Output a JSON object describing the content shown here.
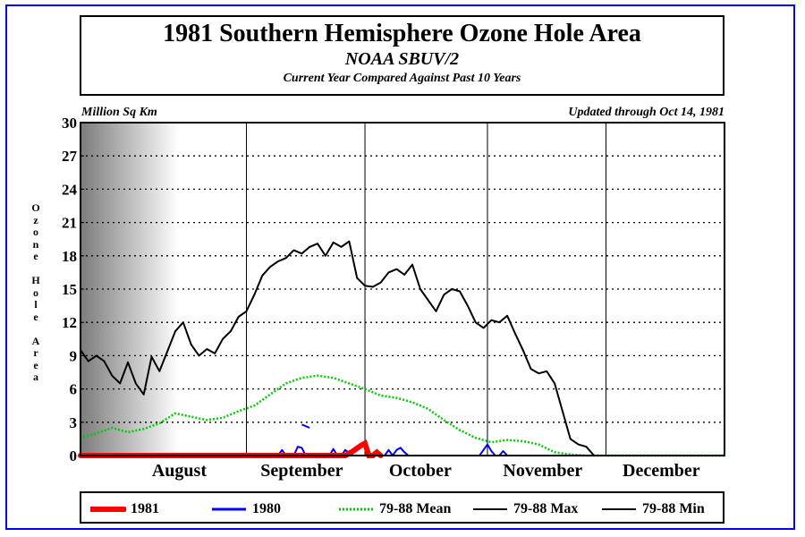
{
  "header": {
    "title": "1981 Southern Hemisphere Ozone Hole Area",
    "subtitle": "NOAA SBUV/2",
    "subtitle2": "Current Year Compared Against Past 10 Years",
    "units": "Million Sq Km",
    "updated": "Updated through Oct 14, 1981",
    "ylabel": "Ozone Hole Area"
  },
  "colors": {
    "frame": "#0000ff",
    "y1981": "#ff0000",
    "y1980": "#0000ff",
    "mean": "#00cc00",
    "max": "#000000",
    "min": "#000000"
  },
  "chart_data": {
    "type": "line",
    "title": "1981 Southern Hemisphere Ozone Hole Area",
    "ylabel": "Ozone Hole Area",
    "yunits": "Million Sq Km",
    "ylim": [
      0,
      30
    ],
    "yticks": [
      0,
      3,
      6,
      9,
      12,
      15,
      18,
      21,
      24,
      27,
      30
    ],
    "xlim": [
      "Jul 21",
      "Dec 31"
    ],
    "months": [
      {
        "name": "August",
        "start": "Aug 1",
        "label": "Aug 15"
      },
      {
        "name": "September",
        "start": "Sep 1",
        "label": "Sep 15"
      },
      {
        "name": "October",
        "start": "Oct 1",
        "label": "Oct 15"
      },
      {
        "name": "November",
        "start": "Nov 1",
        "label": "Nov 15"
      },
      {
        "name": "December",
        "start": "Dec 1",
        "label": "Dec 15"
      }
    ],
    "shading": {
      "from": "Jul 21",
      "to": "Aug 15",
      "note": "gray gradient"
    },
    "series": [
      {
        "name": "79-88 Max",
        "key": "max",
        "style": "solid",
        "x": [
          "Jul 21",
          "Jul 23",
          "Jul 25",
          "Jul 27",
          "Jul 29",
          "Jul 31",
          "Aug 2",
          "Aug 4",
          "Aug 6",
          "Aug 8",
          "Aug 10",
          "Aug 12",
          "Aug 14",
          "Aug 16",
          "Aug 18",
          "Aug 20",
          "Aug 22",
          "Aug 24",
          "Aug 26",
          "Aug 28",
          "Aug 30",
          "Sep 1",
          "Sep 3",
          "Sep 5",
          "Sep 7",
          "Sep 9",
          "Sep 11",
          "Sep 13",
          "Sep 15",
          "Sep 17",
          "Sep 19",
          "Sep 21",
          "Sep 23",
          "Sep 25",
          "Sep 27",
          "Sep 29",
          "Oct 1",
          "Oct 3",
          "Oct 5",
          "Oct 7",
          "Oct 9",
          "Oct 11",
          "Oct 13",
          "Oct 15",
          "Oct 17",
          "Oct 19",
          "Oct 21",
          "Oct 23",
          "Oct 25",
          "Oct 27",
          "Oct 29",
          "Oct 31",
          "Nov 2",
          "Nov 4",
          "Nov 6",
          "Nov 8",
          "Nov 10",
          "Nov 12",
          "Nov 14",
          "Nov 16",
          "Nov 18",
          "Nov 20",
          "Nov 22",
          "Nov 24",
          "Nov 26",
          "Nov 28",
          "Nov 30",
          "Dec 1",
          "Dec 2"
        ],
        "values": [
          9.5,
          8.5,
          9.0,
          8.5,
          7.2,
          6.5,
          8.4,
          6.5,
          5.5,
          8.9,
          7.6,
          9.4,
          11.2,
          12.0,
          10.0,
          9.0,
          9.6,
          9.2,
          10.5,
          11.2,
          12.5,
          13.0,
          14.5,
          16.2,
          17.0,
          17.5,
          17.8,
          18.5,
          18.2,
          18.8,
          19.1,
          18.0,
          19.2,
          18.8,
          19.3,
          16.0,
          15.3,
          15.2,
          15.6,
          16.5,
          16.8,
          16.3,
          17.2,
          15.0,
          14.0,
          13.0,
          14.5,
          15.0,
          14.8,
          13.5,
          12.0,
          11.5,
          12.2,
          12.0,
          12.6,
          11.0,
          9.5,
          7.8,
          7.4,
          7.6,
          6.5,
          4.0,
          1.5,
          1.0,
          0.8,
          0.0,
          0.0,
          0.0,
          0.0
        ]
      },
      {
        "name": "79-88 Mean",
        "key": "mean",
        "style": "dotted",
        "x": [
          "Jul 21",
          "Jul 25",
          "Jul 29",
          "Aug 2",
          "Aug 6",
          "Aug 10",
          "Aug 14",
          "Aug 18",
          "Aug 22",
          "Aug 26",
          "Aug 30",
          "Sep 3",
          "Sep 7",
          "Sep 11",
          "Sep 15",
          "Sep 19",
          "Sep 23",
          "Sep 27",
          "Oct 1",
          "Oct 5",
          "Oct 9",
          "Oct 13",
          "Oct 17",
          "Oct 21",
          "Oct 25",
          "Oct 29",
          "Nov 2",
          "Nov 6",
          "Nov 10",
          "Nov 14",
          "Nov 18",
          "Nov 22",
          "Nov 26",
          "Nov 30",
          "Dec 4",
          "Dec 8",
          "Dec 12",
          "Dec 16",
          "Dec 20",
          "Dec 24",
          "Dec 28",
          "Dec 31"
        ],
        "values": [
          1.6,
          2.0,
          2.5,
          2.1,
          2.4,
          2.9,
          3.8,
          3.5,
          3.2,
          3.4,
          4.0,
          4.5,
          5.5,
          6.5,
          7.0,
          7.2,
          7.0,
          6.5,
          6.0,
          5.4,
          5.2,
          4.8,
          4.2,
          3.2,
          2.3,
          1.6,
          1.2,
          1.4,
          1.3,
          1.0,
          0.3,
          0.1,
          0.0,
          0.0,
          0.0,
          0.0,
          0.0,
          0.0,
          0.0,
          0.0,
          0.0,
          0.0
        ]
      },
      {
        "name": "79-88 Min",
        "key": "min",
        "style": "solid",
        "x": [
          "Jul 21",
          "Dec 31"
        ],
        "values": [
          0.0,
          0.0
        ]
      },
      {
        "name": "1980",
        "key": "y1980",
        "style": "solid",
        "segments": [
          {
            "x": [
              "Jul 21",
              "Sep 8"
            ],
            "values": [
              0.0,
              0.0
            ]
          },
          {
            "x": [
              "Sep 9",
              "Sep 10",
              "Sep 11",
              "Sep 13",
              "Sep 14",
              "Sep 15",
              "Sep 16"
            ],
            "values": [
              0.0,
              0.5,
              0.0,
              0.0,
              0.8,
              0.7,
              0.0
            ]
          },
          {
            "x": [
              "Sep 15",
              "Sep 17"
            ],
            "values": [
              2.8,
              2.5
            ]
          },
          {
            "x": [
              "Sep 20",
              "Sep 22",
              "Sep 23",
              "Sep 24",
              "Sep 25",
              "Sep 26",
              "Sep 28",
              "Oct 5",
              "Oct 6",
              "Oct 7",
              "Oct 8",
              "Oct 9",
              "Oct 10",
              "Oct 11",
              "Oct 12",
              "Oct 13",
              "Oct 14",
              "Oct 15"
            ],
            "values": [
              0.0,
              0.0,
              0.6,
              0.0,
              0.0,
              0.5,
              0.0,
              0.0,
              0.0,
              0.5,
              0.0,
              0.5,
              0.7,
              0.3,
              0.0,
              0.0,
              0.0,
              0.0
            ]
          },
          {
            "x": [
              "Oct 15",
              "Oct 30",
              "Nov 1",
              "Nov 2",
              "Nov 3",
              "Nov 4",
              "Nov 5",
              "Nov 6",
              "Dec 31"
            ],
            "values": [
              0.0,
              0.0,
              1.0,
              0.4,
              0.0,
              0.0,
              0.4,
              0.0,
              0.0
            ]
          }
        ]
      },
      {
        "name": "1981",
        "key": "y1981",
        "style": "thick",
        "x": [
          "Jul 21",
          "Sep 22",
          "Sep 24",
          "Sep 26",
          "Sep 28",
          "Sep 30",
          "Oct 1",
          "Oct 2",
          "Oct 3",
          "Oct 4",
          "Oct 5"
        ],
        "values": [
          0.0,
          0.0,
          0.0,
          0.0,
          0.4,
          0.9,
          1.1,
          0.0,
          0.0,
          0.3,
          0.0
        ]
      }
    ]
  },
  "legend": [
    {
      "label": "1981",
      "key": "y1981"
    },
    {
      "label": "1980",
      "key": "y1980"
    },
    {
      "label": "79-88 Mean",
      "key": "mean"
    },
    {
      "label": "79-88 Max",
      "key": "max"
    },
    {
      "label": "79-88 Min",
      "key": "min"
    }
  ]
}
